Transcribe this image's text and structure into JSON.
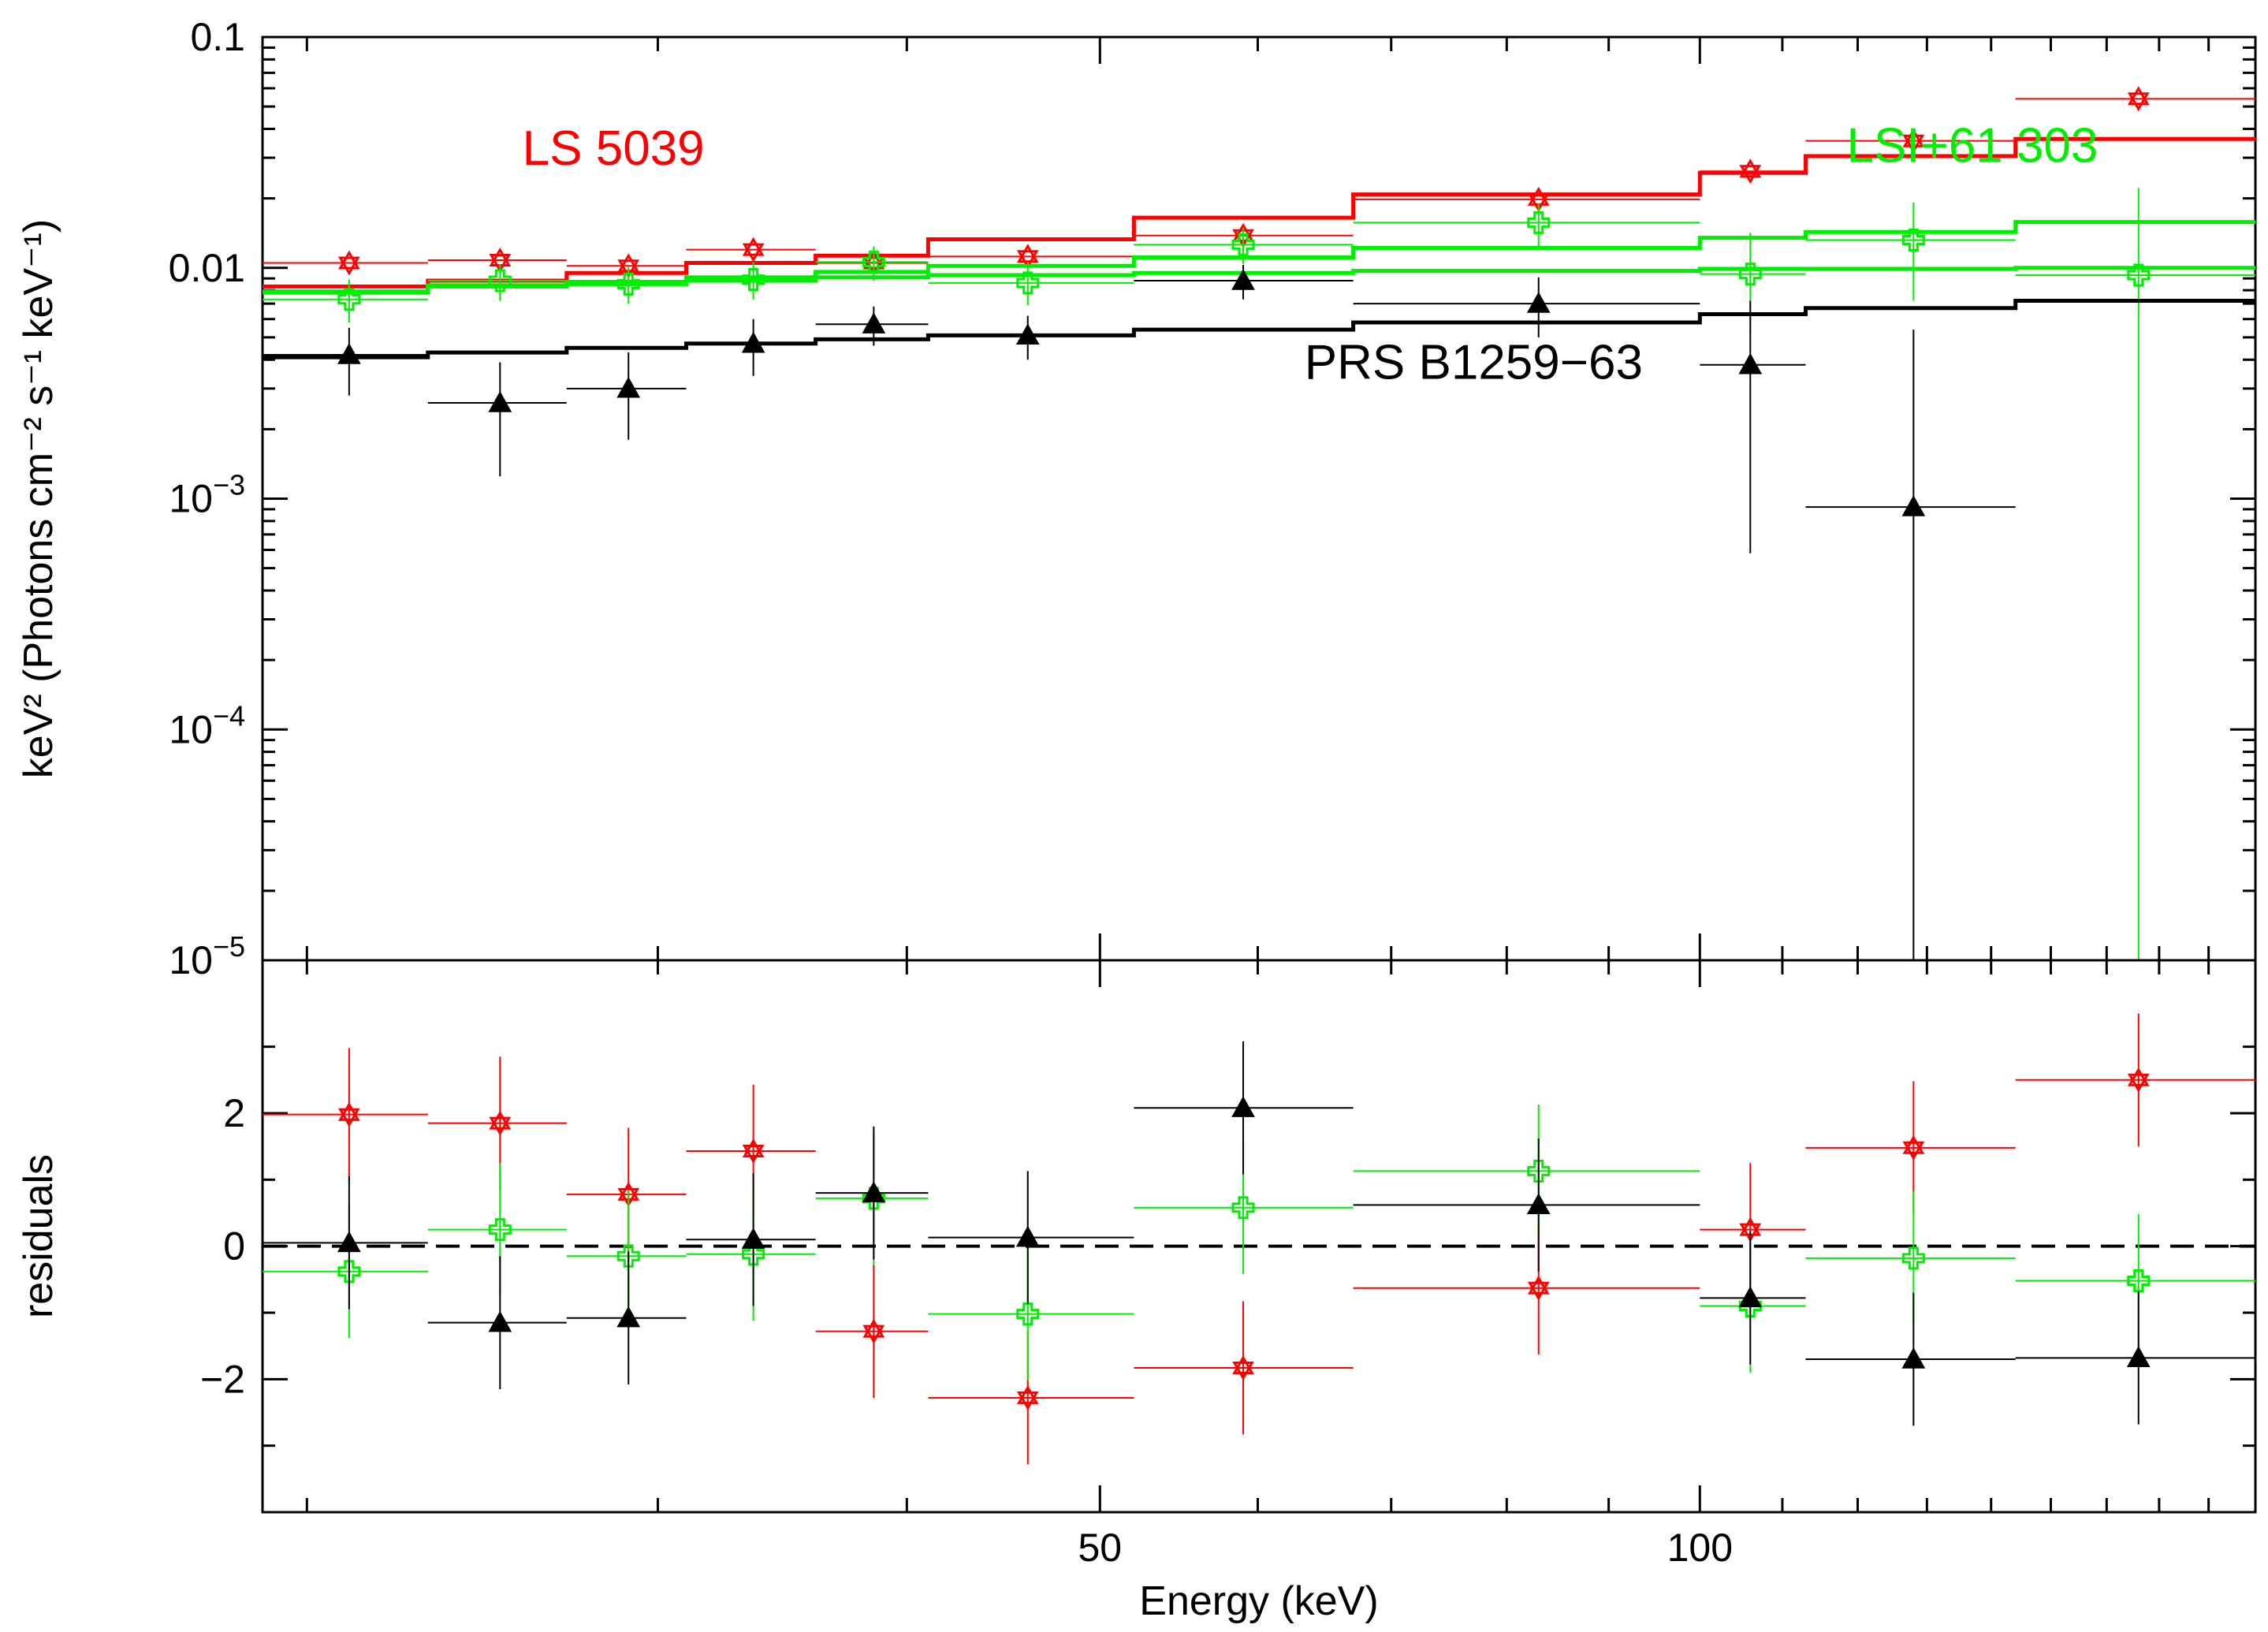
{
  "chart_data": [
    {
      "panel": "spectrum",
      "type": "scatter",
      "x_scale": "log",
      "y_scale": "log",
      "xlim": [
        19.0,
        190.0
      ],
      "ylim": [
        1e-05,
        0.1
      ],
      "xlabel": "Energy (keV)",
      "ylabel": "keV² (Photons cm⁻² s⁻¹ keV⁻¹)",
      "y_tick_labels": [
        {
          "value": 0.1,
          "label": "0.1"
        },
        {
          "value": 0.01,
          "label": "0.01"
        },
        {
          "value": 0.001,
          "label": "10",
          "sup": "−3"
        },
        {
          "value": 0.0001,
          "label": "10",
          "sup": "−4"
        },
        {
          "value": 1e-05,
          "label": "10",
          "sup": "−5"
        }
      ],
      "series": [
        {
          "name": "LS 5039",
          "color": "#ff0000",
          "marker": "star-of-david",
          "points": [
            {
              "x": 21,
              "xlo": 19,
              "xhi": 23,
              "y": 0.0105
            },
            {
              "x": 25,
              "xlo": 23,
              "xhi": 27,
              "y": 0.0108
            },
            {
              "x": 29,
              "xlo": 27,
              "xhi": 31,
              "y": 0.0102
            },
            {
              "x": 33.5,
              "xlo": 31,
              "xhi": 36,
              "y": 0.012
            },
            {
              "x": 38.5,
              "xlo": 36,
              "xhi": 41,
              "y": 0.0105
            },
            {
              "x": 46,
              "xlo": 41,
              "xhi": 52,
              "y": 0.0112
            },
            {
              "x": 59,
              "xlo": 52,
              "xhi": 67,
              "y": 0.0138
            },
            {
              "x": 83,
              "xlo": 67,
              "xhi": 100,
              "y": 0.0198
            },
            {
              "x": 106,
              "xlo": 100,
              "xhi": 113,
              "y": 0.0262
            },
            {
              "x": 128,
              "xlo": 113,
              "xhi": 144,
              "y": 0.0355
            },
            {
              "x": 166,
              "xlo": 144,
              "xhi": 190,
              "y": 0.054
            }
          ],
          "model": [
            {
              "xlo": 19,
              "xhi": 23,
              "y": 0.0083
            },
            {
              "xlo": 23,
              "xhi": 27,
              "y": 0.0088
            },
            {
              "xlo": 27,
              "xhi": 31,
              "y": 0.0095
            },
            {
              "xlo": 31,
              "xhi": 36,
              "y": 0.0105
            },
            {
              "xlo": 36,
              "xhi": 41,
              "y": 0.0113
            },
            {
              "xlo": 41,
              "xhi": 52,
              "y": 0.0133
            },
            {
              "xlo": 52,
              "xhi": 67,
              "y": 0.0165
            },
            {
              "xlo": 67,
              "xhi": 100,
              "y": 0.0208
            },
            {
              "xlo": 100,
              "xhi": 113,
              "y": 0.0258
            },
            {
              "xlo": 113,
              "xhi": 144,
              "y": 0.0305
            },
            {
              "xlo": 144,
              "xhi": 190,
              "y": 0.0362
            }
          ]
        },
        {
          "name": "LSI+61 303",
          "color": "#00ee00",
          "marker": "open-cross",
          "points": [
            {
              "x": 21,
              "xlo": 19,
              "xhi": 23,
              "y": 0.0073,
              "ylo": 0.0058,
              "yhi": 0.0089
            },
            {
              "x": 25,
              "xlo": 23,
              "xhi": 27,
              "y": 0.0088,
              "ylo": 0.0072,
              "yhi": 0.0104
            },
            {
              "x": 29,
              "xlo": 27,
              "xhi": 31,
              "y": 0.0085,
              "ylo": 0.007,
              "yhi": 0.0101
            },
            {
              "x": 33.5,
              "xlo": 31,
              "xhi": 36,
              "y": 0.0089,
              "ylo": 0.0073,
              "yhi": 0.0106
            },
            {
              "x": 38.5,
              "xlo": 36,
              "xhi": 41,
              "y": 0.0106,
              "ylo": 0.0088,
              "yhi": 0.0124
            },
            {
              "x": 46,
              "xlo": 41,
              "xhi": 52,
              "y": 0.0086,
              "ylo": 0.0069,
              "yhi": 0.0103
            },
            {
              "x": 59,
              "xlo": 52,
              "xhi": 67,
              "y": 0.0126,
              "ylo": 0.0104,
              "yhi": 0.0148
            },
            {
              "x": 83,
              "xlo": 67,
              "xhi": 100,
              "y": 0.0157,
              "ylo": 0.0123,
              "yhi": 0.0191
            },
            {
              "x": 106,
              "xlo": 100,
              "xhi": 113,
              "y": 0.0094,
              "ylo": 0.0052,
              "yhi": 0.0142
            },
            {
              "x": 128,
              "xlo": 113,
              "xhi": 144,
              "y": 0.0132,
              "ylo": 0.0072,
              "yhi": 0.0192
            },
            {
              "x": 166,
              "xlo": 144,
              "xhi": 190,
              "y": 0.0093,
              "ylo": 1e-05,
              "yhi": 0.0222
            }
          ],
          "model": [
            {
              "xlo": 19,
              "xhi": 23,
              "y": 0.0079
            },
            {
              "xlo": 23,
              "xhi": 27,
              "y": 0.0084
            },
            {
              "xlo": 27,
              "xhi": 31,
              "y": 0.0087
            },
            {
              "xlo": 31,
              "xhi": 36,
              "y": 0.0091
            },
            {
              "xlo": 36,
              "xhi": 41,
              "y": 0.0096
            },
            {
              "xlo": 41,
              "xhi": 52,
              "y": 0.0102
            },
            {
              "xlo": 52,
              "xhi": 67,
              "y": 0.0111
            },
            {
              "xlo": 67,
              "xhi": 100,
              "y": 0.0122
            },
            {
              "xlo": 100,
              "xhi": 113,
              "y": 0.0135
            },
            {
              "xlo": 113,
              "xhi": 144,
              "y": 0.0143
            },
            {
              "xlo": 144,
              "xhi": 190,
              "y": 0.0158
            }
          ],
          "model2": [
            {
              "xlo": 19,
              "xhi": 23,
              "y": 0.0078
            },
            {
              "xlo": 23,
              "xhi": 27,
              "y": 0.0083
            },
            {
              "xlo": 27,
              "xhi": 31,
              "y": 0.0085
            },
            {
              "xlo": 31,
              "xhi": 36,
              "y": 0.0088
            },
            {
              "xlo": 36,
              "xhi": 41,
              "y": 0.0091
            },
            {
              "xlo": 41,
              "xhi": 52,
              "y": 0.0093
            },
            {
              "xlo": 52,
              "xhi": 67,
              "y": 0.0095
            },
            {
              "xlo": 67,
              "xhi": 100,
              "y": 0.0097
            },
            {
              "xlo": 100,
              "xhi": 113,
              "y": 0.0099
            },
            {
              "xlo": 113,
              "xhi": 144,
              "y": 0.0099
            },
            {
              "xlo": 144,
              "xhi": 190,
              "y": 0.01
            }
          ]
        },
        {
          "name": "PRS B1259−63",
          "color": "#000000",
          "marker": "filled-triangle",
          "points": [
            {
              "x": 21,
              "xlo": 19,
              "xhi": 23,
              "y": 0.0042,
              "ylo": 0.0028,
              "yhi": 0.0055
            },
            {
              "x": 25,
              "xlo": 23,
              "xhi": 27,
              "y": 0.0026,
              "ylo": 0.00125,
              "yhi": 0.0039
            },
            {
              "x": 29,
              "xlo": 27,
              "xhi": 31,
              "y": 0.003,
              "ylo": 0.0018,
              "yhi": 0.0043
            },
            {
              "x": 33.5,
              "xlo": 31,
              "xhi": 36,
              "y": 0.0047,
              "ylo": 0.0034,
              "yhi": 0.006
            },
            {
              "x": 38.5,
              "xlo": 36,
              "xhi": 41,
              "y": 0.0057,
              "ylo": 0.0046,
              "yhi": 0.0068
            },
            {
              "x": 46,
              "xlo": 41,
              "xhi": 52,
              "y": 0.0051,
              "ylo": 0.004,
              "yhi": 0.0062
            },
            {
              "x": 59,
              "xlo": 52,
              "xhi": 67,
              "y": 0.0088,
              "ylo": 0.0073,
              "yhi": 0.0103
            },
            {
              "x": 83,
              "xlo": 67,
              "xhi": 100,
              "y": 0.007,
              "ylo": 0.005,
              "yhi": 0.0091
            },
            {
              "x": 106,
              "xlo": 100,
              "xhi": 113,
              "y": 0.0038,
              "ylo": 0.00058,
              "yhi": 0.0072
            },
            {
              "x": 128,
              "xlo": 113,
              "xhi": 144,
              "y": 0.00092,
              "ylo": 1e-05,
              "yhi": 0.0054
            },
            {
              "x": 166,
              "xlo": 144,
              "xhi": 190,
              "y": null
            }
          ],
          "model": [
            {
              "xlo": 19,
              "xhi": 23,
              "y": 0.0041
            },
            {
              "xlo": 23,
              "xhi": 27,
              "y": 0.0043
            },
            {
              "xlo": 27,
              "xhi": 31,
              "y": 0.0045
            },
            {
              "xlo": 31,
              "xhi": 36,
              "y": 0.0047
            },
            {
              "xlo": 36,
              "xhi": 41,
              "y": 0.0049
            },
            {
              "xlo": 41,
              "xhi": 52,
              "y": 0.0051
            },
            {
              "xlo": 52,
              "xhi": 67,
              "y": 0.0054
            },
            {
              "xlo": 67,
              "xhi": 100,
              "y": 0.0058
            },
            {
              "xlo": 100,
              "xhi": 113,
              "y": 0.0063
            },
            {
              "xlo": 113,
              "xhi": 144,
              "y": 0.0067
            },
            {
              "xlo": 144,
              "xhi": 190,
              "y": 0.0072
            }
          ]
        }
      ],
      "annotations": [
        {
          "text": "LS 5039",
          "color": "#ff0000",
          "x": 28.5,
          "y": 0.028
        },
        {
          "text": "LSI+61 303",
          "color": "#00ee00",
          "x": 137,
          "y": 0.0287
        },
        {
          "text": "PRS B1259−63",
          "color": "#000000",
          "x": 77,
          "y": 0.0033
        }
      ]
    },
    {
      "panel": "residuals",
      "type": "scatter",
      "x_scale": "log",
      "xlim": [
        19.0,
        190.0
      ],
      "ylim": [
        -4.0,
        4.3
      ],
      "xlabel": "Energy (keV)",
      "ylabel": "residuals",
      "x_ticks": [
        50,
        100
      ],
      "y_ticks": [
        -2,
        0,
        2
      ],
      "zero_line": true,
      "series": [
        {
          "name": "LS 5039",
          "color": "#ff0000",
          "marker": "star-of-david",
          "points": [
            {
              "x": 21,
              "xlo": 19,
              "xhi": 23,
              "y": 1.98,
              "err": 1.0
            },
            {
              "x": 25,
              "xlo": 23,
              "xhi": 27,
              "y": 1.85,
              "err": 1.0
            },
            {
              "x": 29,
              "xlo": 27,
              "xhi": 31,
              "y": 0.78,
              "err": 1.0
            },
            {
              "x": 33.5,
              "xlo": 31,
              "xhi": 36,
              "y": 1.43,
              "err": 1.0
            },
            {
              "x": 38.5,
              "xlo": 36,
              "xhi": 41,
              "y": -1.28,
              "err": 1.0
            },
            {
              "x": 46,
              "xlo": 41,
              "xhi": 52,
              "y": -2.28,
              "err": 1.0
            },
            {
              "x": 59,
              "xlo": 52,
              "xhi": 67,
              "y": -1.83,
              "err": 1.0
            },
            {
              "x": 83,
              "xlo": 67,
              "xhi": 100,
              "y": -0.63,
              "err": 1.0
            },
            {
              "x": 106,
              "xlo": 100,
              "xhi": 113,
              "y": 0.25,
              "err": 1.0
            },
            {
              "x": 128,
              "xlo": 113,
              "xhi": 144,
              "y": 1.48,
              "err": 1.0
            },
            {
              "x": 166,
              "xlo": 144,
              "xhi": 190,
              "y": 2.5,
              "err": 1.0
            }
          ]
        },
        {
          "name": "LSI+61 303",
          "color": "#00ee00",
          "marker": "open-cross",
          "points": [
            {
              "x": 21,
              "xlo": 19,
              "xhi": 23,
              "y": -0.38,
              "err": 1.0
            },
            {
              "x": 25,
              "xlo": 23,
              "xhi": 27,
              "y": 0.25,
              "err": 1.0
            },
            {
              "x": 29,
              "xlo": 27,
              "xhi": 31,
              "y": -0.15,
              "err": 1.0
            },
            {
              "x": 33.5,
              "xlo": 31,
              "xhi": 36,
              "y": -0.12,
              "err": 1.0
            },
            {
              "x": 38.5,
              "xlo": 36,
              "xhi": 41,
              "y": 0.72,
              "err": 1.0
            },
            {
              "x": 46,
              "xlo": 41,
              "xhi": 52,
              "y": -1.02,
              "err": 1.0
            },
            {
              "x": 59,
              "xlo": 52,
              "xhi": 67,
              "y": 0.58,
              "err": 1.0
            },
            {
              "x": 83,
              "xlo": 67,
              "xhi": 100,
              "y": 1.13,
              "err": 1.0
            },
            {
              "x": 106,
              "xlo": 100,
              "xhi": 113,
              "y": -0.9,
              "err": 1.0
            },
            {
              "x": 128,
              "xlo": 113,
              "xhi": 144,
              "y": -0.18,
              "err": 1.0
            },
            {
              "x": 166,
              "xlo": 144,
              "xhi": 190,
              "y": -0.52,
              "err": 1.0
            }
          ]
        },
        {
          "name": "PRS B1259−63",
          "color": "#000000",
          "marker": "filled-triangle",
          "points": [
            {
              "x": 21,
              "xlo": 19,
              "xhi": 23,
              "y": 0.05,
              "err": 1.0
            },
            {
              "x": 25,
              "xlo": 23,
              "xhi": 27,
              "y": -1.15,
              "err": 1.0
            },
            {
              "x": 29,
              "xlo": 27,
              "xhi": 31,
              "y": -1.08,
              "err": 1.0
            },
            {
              "x": 33.5,
              "xlo": 31,
              "xhi": 36,
              "y": 0.1,
              "err": 1.0
            },
            {
              "x": 38.5,
              "xlo": 36,
              "xhi": 41,
              "y": 0.8,
              "err": 1.0
            },
            {
              "x": 46,
              "xlo": 41,
              "xhi": 52,
              "y": 0.13,
              "err": 1.0
            },
            {
              "x": 59,
              "xlo": 52,
              "xhi": 67,
              "y": 2.08,
              "err": 1.0
            },
            {
              "x": 83,
              "xlo": 67,
              "xhi": 100,
              "y": 0.62,
              "err": 1.0
            },
            {
              "x": 106,
              "xlo": 100,
              "xhi": 113,
              "y": -0.78,
              "err": 1.0
            },
            {
              "x": 128,
              "xlo": 113,
              "xhi": 144,
              "y": -1.7,
              "err": 1.0
            },
            {
              "x": 166,
              "xlo": 144,
              "xhi": 190,
              "y": -1.68,
              "err": 1.0
            }
          ]
        }
      ]
    }
  ]
}
